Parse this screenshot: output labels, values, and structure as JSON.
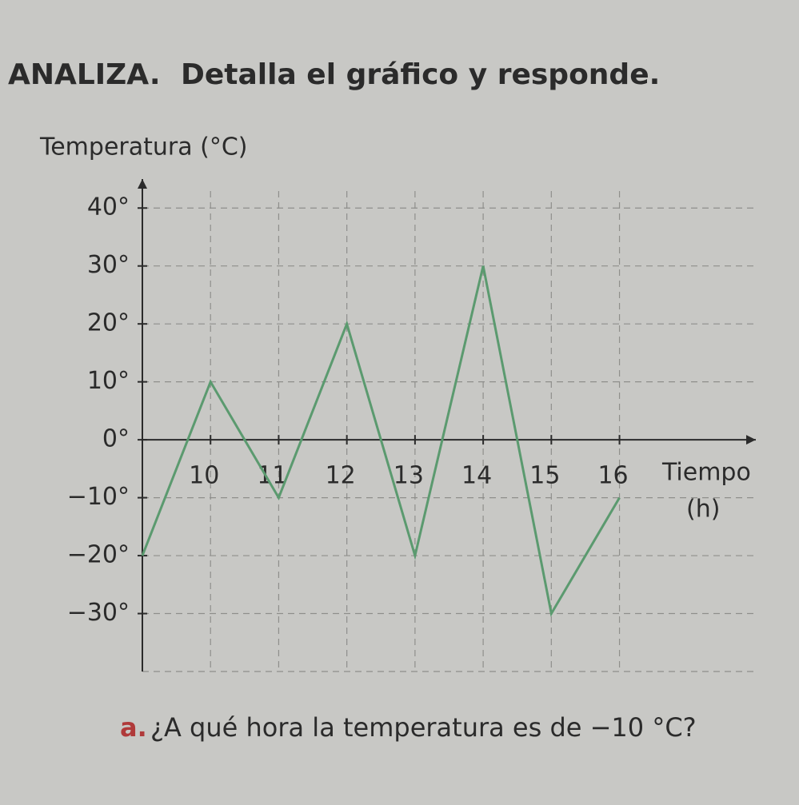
{
  "heading": {
    "label": "ANALIZA.",
    "text": "Detalla el gráfico y responde."
  },
  "question": {
    "label": "a.",
    "text": "¿A qué hora la temperatura es de −10 °C?"
  },
  "chart_data": {
    "type": "line",
    "ylabel": "Temperatura (°C)",
    "xlabel": [
      "Tiempo",
      "(h)"
    ],
    "x": [
      9,
      10,
      11,
      12,
      13,
      14,
      15,
      16
    ],
    "values": [
      -20,
      10,
      -10,
      20,
      -20,
      30,
      -30,
      -10
    ],
    "color": "#5b9a6f",
    "xlim": [
      9,
      18
    ],
    "ylim": [
      -40,
      45
    ],
    "xticks": [
      10,
      11,
      12,
      13,
      14,
      15,
      16
    ],
    "yticks": [
      {
        "value": -30,
        "label": "−30°"
      },
      {
        "value": -20,
        "label": "−20°"
      },
      {
        "value": -10,
        "label": "−10°"
      },
      {
        "value": 0,
        "label": "0°"
      },
      {
        "value": 10,
        "label": "10°"
      },
      {
        "value": 20,
        "label": "20°"
      },
      {
        "value": 30,
        "label": "30°"
      },
      {
        "value": 40,
        "label": "40°"
      }
    ],
    "grid": true
  }
}
